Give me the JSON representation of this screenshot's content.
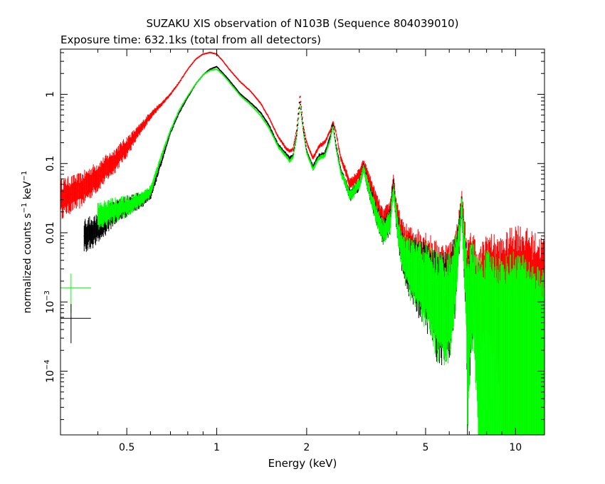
{
  "chart_data": {
    "type": "line",
    "title": "SUZAKU XIS observation of N103B (Sequence 804039010)",
    "subtitle": "Exposure time: 632.1ks (total from all detectors)",
    "xlabel": "Energy (keV)",
    "ylabel_main": "normalized counts s",
    "ylabel_sup1": "−1",
    "ylabel_mid": " keV",
    "ylabel_sup2": "−1",
    "x_scale": "log",
    "y_scale": "log",
    "xlim": [
      0.3,
      12.5
    ],
    "ylim": [
      1.2e-05,
      4.5
    ],
    "grid": false,
    "x_ticks": [
      {
        "value": 0.5,
        "label": "0.5"
      },
      {
        "value": 1,
        "label": "1"
      },
      {
        "value": 2,
        "label": "2"
      },
      {
        "value": 5,
        "label": "5"
      },
      {
        "value": 10,
        "label": "10"
      }
    ],
    "y_ticks": [
      {
        "value": 1,
        "label": "1"
      },
      {
        "value": 0.1,
        "label": "0.1"
      },
      {
        "value": 0.01,
        "label": "0.01"
      },
      {
        "value": 0.001,
        "base": "10",
        "exp": "−3"
      },
      {
        "value": 0.0001,
        "base": "10",
        "exp": "−4"
      }
    ],
    "series": [
      {
        "color": "#ff0000",
        "x": [
          0.3,
          0.35,
          0.4,
          0.45,
          0.5,
          0.55,
          0.6,
          0.65,
          0.7,
          0.75,
          0.8,
          0.85,
          0.9,
          0.95,
          1.0,
          1.05,
          1.1,
          1.2,
          1.3,
          1.4,
          1.5,
          1.6,
          1.7,
          1.75,
          1.8,
          1.85,
          1.9,
          1.95,
          2.0,
          2.1,
          2.2,
          2.3,
          2.4,
          2.45,
          2.5,
          2.6,
          2.8,
          3.0,
          3.1,
          3.2,
          3.4,
          3.6,
          3.8,
          3.9,
          4.0,
          4.2,
          4.5,
          5.0,
          5.5,
          6.0,
          6.3,
          6.5,
          6.6,
          6.7,
          6.9,
          7.2,
          7.5,
          8.0,
          9.0,
          10.0,
          11.0,
          12.5
        ],
        "y": [
          0.035,
          0.045,
          0.07,
          0.11,
          0.18,
          0.3,
          0.5,
          0.7,
          1.0,
          1.5,
          2.3,
          3.2,
          3.8,
          4.0,
          3.8,
          3.0,
          2.3,
          1.5,
          1.1,
          0.75,
          0.45,
          0.25,
          0.17,
          0.15,
          0.16,
          0.3,
          1.0,
          0.35,
          0.2,
          0.12,
          0.18,
          0.2,
          0.3,
          0.4,
          0.3,
          0.12,
          0.05,
          0.07,
          0.1,
          0.07,
          0.03,
          0.015,
          0.02,
          0.06,
          0.02,
          0.008,
          0.006,
          0.005,
          0.003,
          0.003,
          0.005,
          0.015,
          0.03,
          0.012,
          0.003,
          0.005,
          0.002,
          0.004,
          0.003,
          0.005,
          0.004,
          0.003
        ],
        "errors": [
          0.45,
          0.4,
          0.35,
          0.3,
          0.25,
          0.15,
          0.1,
          0.06,
          0.04,
          0.03,
          0.02,
          0.015,
          0.012,
          0.012,
          0.012,
          0.012,
          0.015,
          0.02,
          0.02,
          0.03,
          0.03,
          0.04,
          0.05,
          0.05,
          0.05,
          0.04,
          0.03,
          0.04,
          0.05,
          0.06,
          0.06,
          0.06,
          0.05,
          0.05,
          0.05,
          0.08,
          0.15,
          0.15,
          0.12,
          0.15,
          0.25,
          0.3,
          0.3,
          0.2,
          0.3,
          0.5,
          0.6,
          0.7,
          0.8,
          0.8,
          0.7,
          0.4,
          0.3,
          0.6,
          0.9,
          0.8,
          0.9,
          0.9,
          1.0,
          1.0,
          1.0,
          1.0
        ]
      },
      {
        "color": "#000000",
        "x": [
          0.36,
          0.4,
          0.45,
          0.5,
          0.55,
          0.6,
          0.65,
          0.7,
          0.75,
          0.8,
          0.85,
          0.9,
          0.95,
          1.0,
          1.05,
          1.1,
          1.2,
          1.3,
          1.4,
          1.5,
          1.6,
          1.7,
          1.75,
          1.8,
          1.85,
          1.9,
          1.95,
          2.0,
          2.1,
          2.2,
          2.3,
          2.4,
          2.45,
          2.5,
          2.6,
          2.8,
          3.0,
          3.1,
          3.2,
          3.4,
          3.6,
          3.8,
          3.9,
          4.0,
          4.2,
          4.5,
          5.0,
          5.5,
          6.0,
          6.3,
          6.5,
          6.6,
          6.7,
          6.9,
          7.2
        ],
        "y": [
          0.01,
          0.012,
          0.02,
          0.025,
          0.03,
          0.035,
          0.1,
          0.28,
          0.55,
          0.9,
          1.4,
          1.9,
          2.3,
          2.5,
          2.0,
          1.6,
          1.0,
          0.75,
          0.55,
          0.35,
          0.19,
          0.14,
          0.12,
          0.13,
          0.25,
          0.8,
          0.3,
          0.15,
          0.09,
          0.13,
          0.14,
          0.25,
          0.38,
          0.2,
          0.08,
          0.035,
          0.05,
          0.09,
          0.05,
          0.02,
          0.011,
          0.015,
          0.05,
          0.015,
          0.005,
          0.004,
          0.003,
          0.002,
          0.002,
          0.004,
          0.012,
          0.028,
          0.009,
          0.002,
          0.003
        ],
        "errors": [
          0.4,
          0.35,
          0.3,
          0.25,
          0.2,
          0.15,
          0.08,
          0.05,
          0.03,
          0.02,
          0.015,
          0.012,
          0.012,
          0.012,
          0.012,
          0.015,
          0.02,
          0.02,
          0.03,
          0.035,
          0.045,
          0.05,
          0.05,
          0.05,
          0.04,
          0.03,
          0.04,
          0.05,
          0.06,
          0.06,
          0.06,
          0.05,
          0.05,
          0.05,
          0.08,
          0.15,
          0.15,
          0.12,
          0.15,
          0.25,
          0.3,
          0.3,
          0.2,
          0.3,
          0.5,
          0.7,
          0.8,
          0.9,
          0.9,
          0.8,
          0.4,
          0.3,
          0.6,
          1.0,
          0.9
        ]
      },
      {
        "color": "#00ff00",
        "x": [
          0.4,
          0.45,
          0.5,
          0.55,
          0.6,
          0.65,
          0.7,
          0.75,
          0.8,
          0.85,
          0.9,
          0.95,
          1.0,
          1.05,
          1.1,
          1.2,
          1.3,
          1.4,
          1.5,
          1.6,
          1.7,
          1.75,
          1.8,
          1.85,
          1.9,
          1.95,
          2.0,
          2.1,
          2.2,
          2.3,
          2.4,
          2.45,
          2.5,
          2.6,
          2.8,
          3.0,
          3.1,
          3.2,
          3.4,
          3.6,
          3.8,
          3.9,
          4.0,
          4.2,
          4.5,
          5.0,
          5.5,
          6.0,
          6.3,
          6.5,
          6.6,
          6.7,
          6.9,
          7.2,
          7.5,
          8.0,
          9.0,
          10.0,
          11.0,
          12.5
        ],
        "y": [
          0.018,
          0.022,
          0.025,
          0.03,
          0.04,
          0.12,
          0.3,
          0.6,
          0.95,
          1.4,
          1.9,
          2.2,
          2.3,
          1.9,
          1.5,
          0.95,
          0.7,
          0.5,
          0.32,
          0.18,
          0.13,
          0.11,
          0.12,
          0.23,
          0.7,
          0.28,
          0.14,
          0.085,
          0.12,
          0.13,
          0.22,
          0.35,
          0.18,
          0.075,
          0.035,
          0.05,
          0.085,
          0.05,
          0.02,
          0.011,
          0.014,
          0.045,
          0.015,
          0.005,
          0.004,
          0.003,
          0.002,
          0.002,
          0.004,
          0.011,
          0.025,
          0.008,
          0.002,
          0.003,
          0.0015,
          0.002,
          0.0015,
          0.002,
          0.0015,
          0.001
        ],
        "errors": [
          0.35,
          0.3,
          0.25,
          0.2,
          0.15,
          0.08,
          0.05,
          0.03,
          0.02,
          0.015,
          0.012,
          0.012,
          0.012,
          0.012,
          0.015,
          0.02,
          0.02,
          0.03,
          0.035,
          0.045,
          0.05,
          0.05,
          0.05,
          0.04,
          0.03,
          0.04,
          0.05,
          0.06,
          0.06,
          0.06,
          0.05,
          0.05,
          0.05,
          0.08,
          0.15,
          0.15,
          0.12,
          0.15,
          0.25,
          0.3,
          0.3,
          0.2,
          0.3,
          0.5,
          0.7,
          0.8,
          0.9,
          0.9,
          0.8,
          0.4,
          0.3,
          0.6,
          1.0,
          0.9,
          1.0,
          1.0,
          1.0,
          1.0,
          1.0,
          1.0
        ]
      }
    ],
    "legend_crosses": [
      {
        "color": "#00ff00",
        "x": 0.34,
        "y": 0.0016
      },
      {
        "color": "#000000",
        "x": 0.34,
        "y": 0.00058
      }
    ]
  }
}
